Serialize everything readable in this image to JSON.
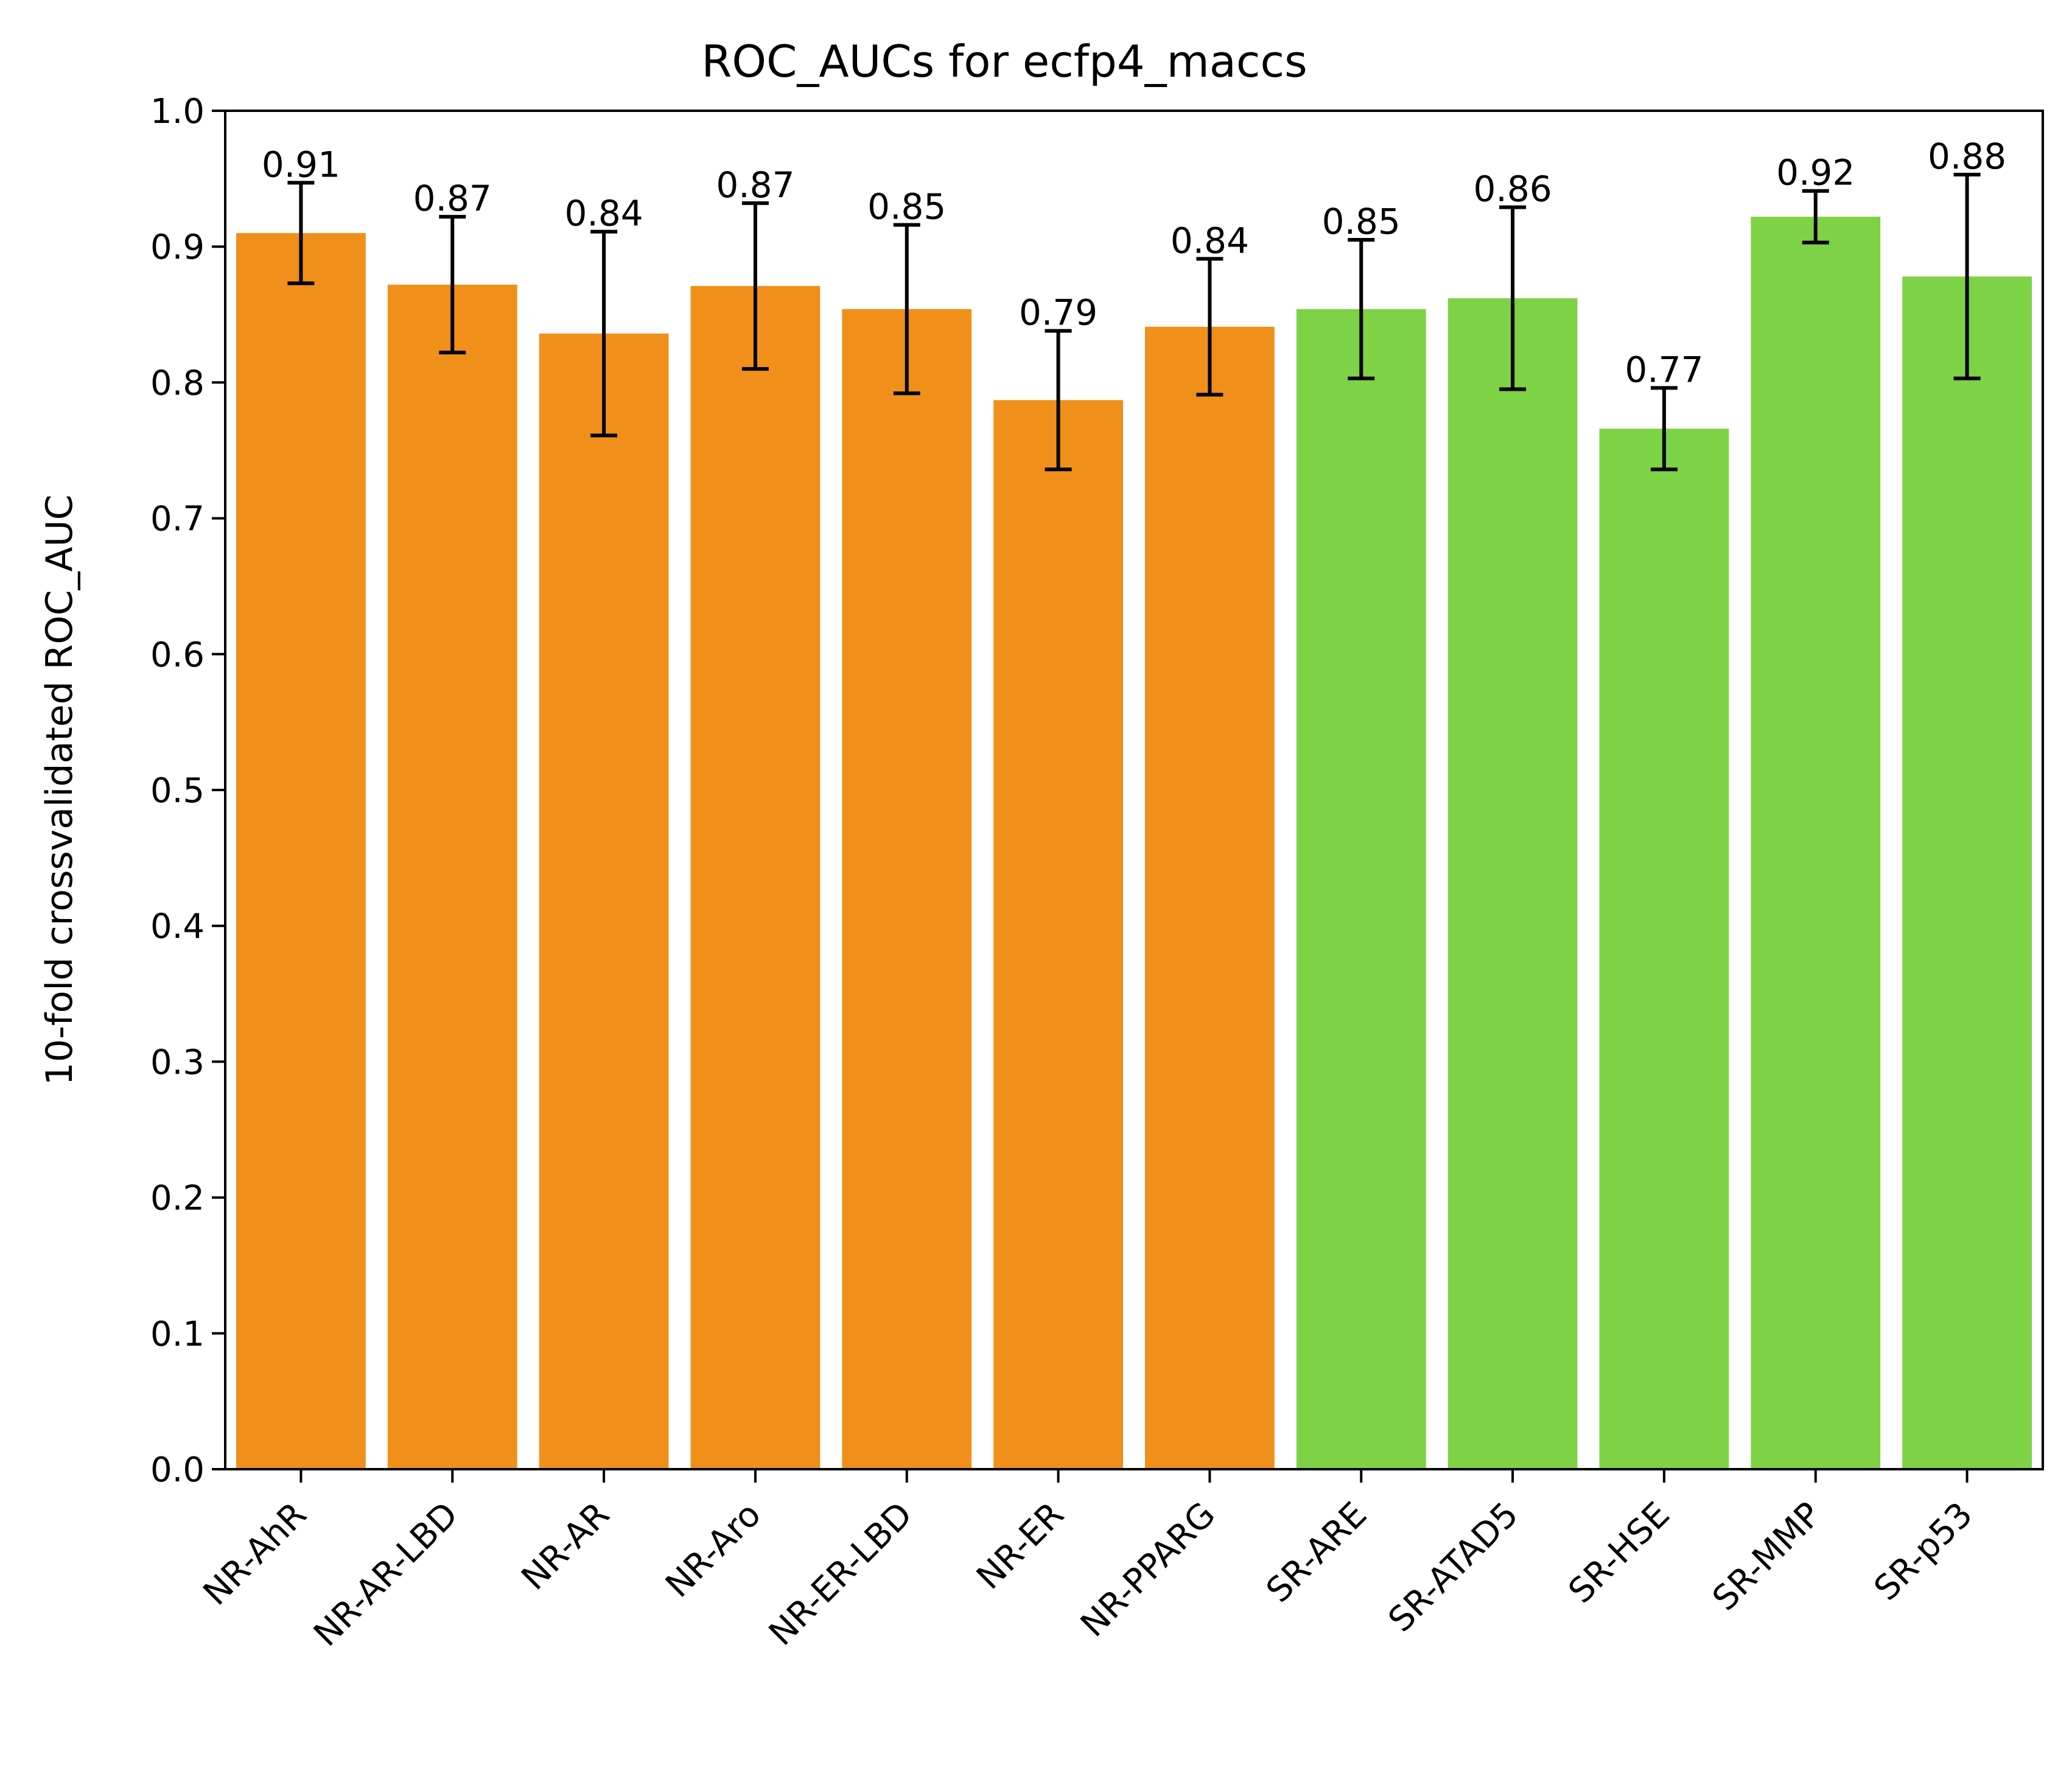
{
  "chart_data": {
    "type": "bar",
    "title": "ROC_AUCs for ecfp4_maccs",
    "xlabel": "",
    "ylabel": "10-fold crossvalidated ROC_AUC",
    "ylim": [
      0.0,
      1.0
    ],
    "yticks": [
      "0.0",
      "0.1",
      "0.2",
      "0.3",
      "0.4",
      "0.5",
      "0.6",
      "0.7",
      "0.8",
      "0.9",
      "1.0"
    ],
    "categories": [
      "NR-AhR",
      "NR-AR-LBD",
      "NR-AR",
      "NR-Aro",
      "NR-ER-LBD",
      "NR-ER",
      "NR-PPARG",
      "SR-ARE",
      "SR-ATAD5",
      "SR-HSE",
      "SR-MMP",
      "SR-p53"
    ],
    "values": [
      0.91,
      0.872,
      0.836,
      0.871,
      0.854,
      0.787,
      0.841,
      0.854,
      0.862,
      0.766,
      0.922,
      0.878
    ],
    "errors": [
      0.037,
      0.05,
      0.075,
      0.061,
      0.062,
      0.051,
      0.05,
      0.051,
      0.067,
      0.03,
      0.019,
      0.075
    ],
    "data_labels": [
      "0.91",
      "0.87",
      "0.84",
      "0.87",
      "0.85",
      "0.79",
      "0.84",
      "0.85",
      "0.86",
      "0.77",
      "0.92",
      "0.88"
    ],
    "colors": [
      "#F0901A",
      "#F0901A",
      "#F0901A",
      "#F0901A",
      "#F0901A",
      "#F0901A",
      "#F0901A",
      "#7ED246",
      "#7ED246",
      "#7ED246",
      "#7ED246",
      "#7ED246"
    ],
    "grid": false
  }
}
